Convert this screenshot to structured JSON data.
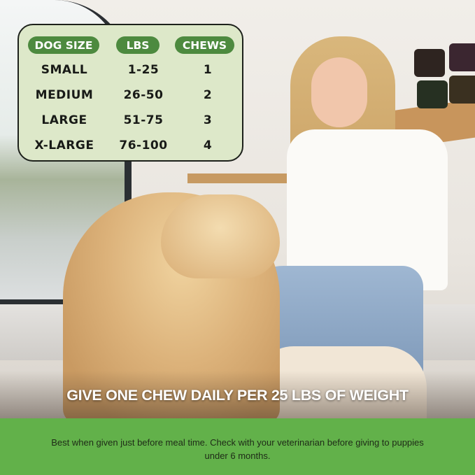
{
  "dosage_table": {
    "headers": [
      "DOG SIZE",
      "LBS",
      "CHEWS"
    ],
    "rows": [
      [
        "SMALL",
        "1-25",
        "1"
      ],
      [
        "MEDIUM",
        "26-50",
        "2"
      ],
      [
        "LARGE",
        "51-75",
        "3"
      ],
      [
        "X-LARGE",
        "76-100",
        "4"
      ]
    ]
  },
  "headline": "GIVE ONE CHEW DAILY PER 25 LBS OF WEIGHT",
  "note": "Best when given just before meal time. Check with your veterinarian before giving to puppies under 6 months.",
  "colors": {
    "header_pill": "#4d8a3f",
    "table_bg": "#dde8c9",
    "band": "#62b14a"
  }
}
